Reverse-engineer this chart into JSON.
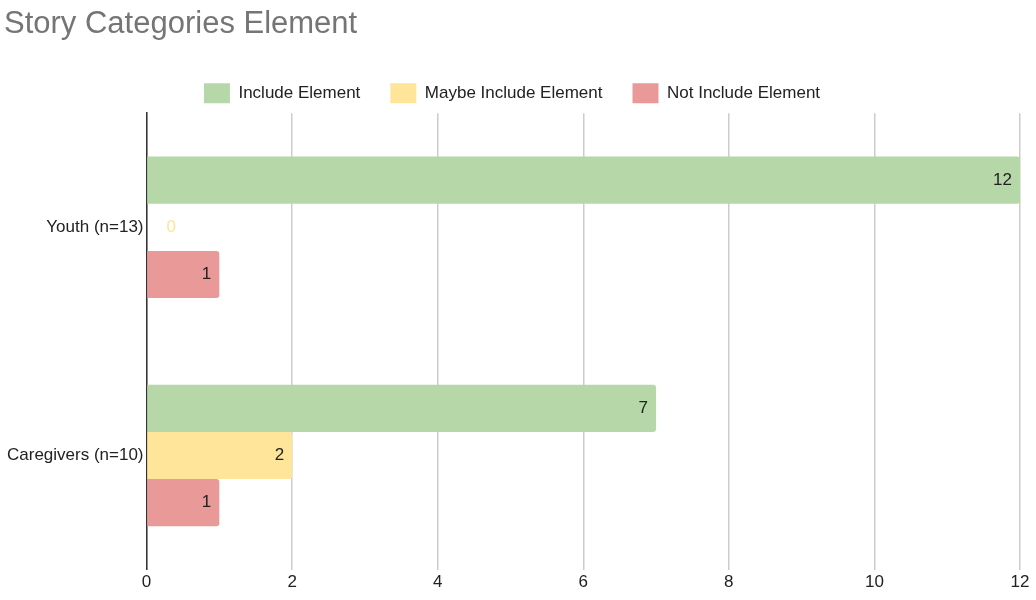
{
  "chart_data": {
    "type": "bar",
    "orientation": "horizontal",
    "title": "Story Categories Element",
    "categories": [
      "Youth (n=13)",
      "Caregivers (n=10)"
    ],
    "series": [
      {
        "name": "Include Element",
        "color": "#b6d7a8",
        "values": [
          12,
          7
        ]
      },
      {
        "name": "Maybe Include Element",
        "color": "#ffe599",
        "values": [
          0,
          2
        ]
      },
      {
        "name": "Not Include Element",
        "color": "#ea9999",
        "values": [
          1,
          1
        ]
      }
    ],
    "xlim": [
      0,
      12
    ],
    "xticks": [
      0,
      2,
      4,
      6,
      8,
      10,
      12
    ],
    "grid": "x",
    "legend": "top",
    "data_labels": true
  }
}
